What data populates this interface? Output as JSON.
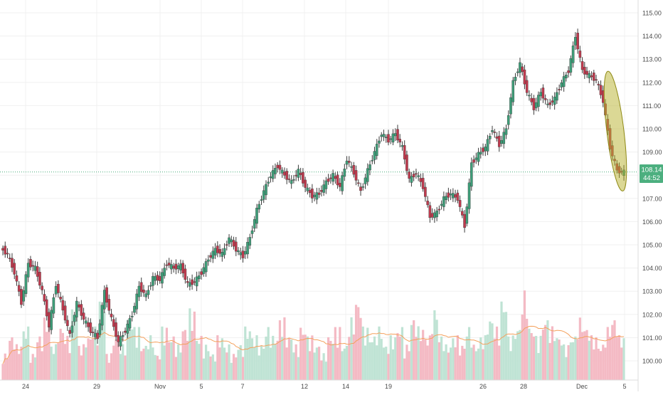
{
  "chart_data": {
    "type": "candlestick",
    "symbol": "",
    "title": "",
    "ylim": [
      99.6,
      115.3
    ],
    "y_ticks": [
      "115.00",
      "114.00",
      "113.00",
      "112.00",
      "111.00",
      "110.00",
      "109.00",
      "108.00",
      "107.00",
      "106.00",
      "105.00",
      "104.00",
      "103.00",
      "102.00",
      "101.00",
      "100.00"
    ],
    "x_ticks": [
      "24",
      "29",
      "Nov",
      "5",
      "7",
      "12",
      "14",
      "19",
      "26",
      "28",
      "Dec",
      "5"
    ],
    "last_price": {
      "label": "108.14",
      "value": 108.14
    },
    "countdown": {
      "label": "44:52"
    },
    "colors": {
      "up": "#3e9e79",
      "down": "#c03a4e",
      "up_volume": "#bfe3d4",
      "down_volume": "#f4bac4",
      "ma": "#f4a15d",
      "highlight_fill": "#b8b12c",
      "highlight_stroke": "#8f8a16",
      "price_label": "#4caf7f",
      "grid": "#f0f0f0"
    },
    "highlight": {
      "note": "ellipse around final drop",
      "y_top": 112.5,
      "y_bottom": 107.3
    },
    "price_path": [
      104.85,
      104.6,
      103.8,
      102.5,
      104.2,
      104.0,
      103.0,
      101.5,
      103.3,
      102.2,
      101.1,
      102.5,
      101.8,
      101.3,
      101.0,
      103.0,
      101.8,
      100.8,
      101.3,
      102.0,
      103.2,
      102.8,
      103.6,
      103.5,
      104.2,
      104.0,
      104.1,
      103.3,
      103.4,
      103.8,
      104.4,
      104.8,
      104.6,
      105.3,
      104.8,
      104.5,
      105.3,
      106.5,
      107.3,
      108.0,
      108.4,
      108.0,
      107.7,
      108.2,
      107.5,
      107.1,
      107.2,
      107.7,
      108.0,
      107.5,
      108.7,
      108.1,
      107.3,
      108.2,
      109.0,
      109.8,
      109.5,
      109.8,
      109.2,
      107.8,
      108.1,
      107.5,
      106.2,
      106.4,
      107.0,
      107.2,
      107.0,
      105.8,
      108.5,
      108.9,
      109.2,
      110.0,
      109.3,
      110.0,
      112.0,
      112.8,
      111.6,
      110.9,
      111.6,
      111.0,
      111.3,
      112.0,
      112.5,
      114.0,
      112.5,
      112.3,
      112.1,
      111.2,
      109.2,
      108.2,
      108.14
    ],
    "volume_rel": [
      0.3,
      0.5,
      0.4,
      0.6,
      0.3,
      0.5,
      0.7,
      0.4,
      0.6,
      0.5,
      0.8,
      0.4,
      0.5,
      0.6,
      0.9,
      0.3,
      0.5,
      0.4,
      0.7,
      0.6,
      0.4,
      0.5,
      0.3,
      0.6,
      0.5,
      0.4,
      0.6,
      0.8,
      0.5,
      0.4,
      0.3,
      0.5,
      0.4,
      0.3,
      0.4,
      0.6,
      0.5,
      0.4,
      0.6,
      0.5,
      0.7,
      0.5,
      0.4,
      0.6,
      0.5,
      0.4,
      0.3,
      0.5,
      0.6,
      0.4,
      0.7,
      0.9,
      0.6,
      0.5,
      0.6,
      0.4,
      0.5,
      0.6,
      0.4,
      0.7,
      0.6,
      0.5,
      0.8,
      0.5,
      0.4,
      0.5,
      0.4,
      0.6,
      0.4,
      0.5,
      0.7,
      0.6,
      0.9,
      0.5,
      0.6,
      1.0,
      0.6,
      0.5,
      0.7,
      0.6,
      0.5,
      0.4,
      0.5,
      0.7,
      0.6,
      0.5,
      0.4,
      0.6,
      0.7,
      0.5,
      0.4
    ]
  }
}
